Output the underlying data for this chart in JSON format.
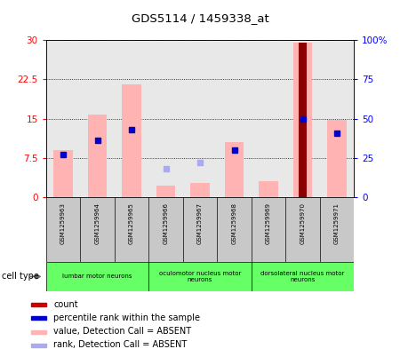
{
  "title": "GDS5114 / 1459338_at",
  "samples": [
    "GSM1259963",
    "GSM1259964",
    "GSM1259965",
    "GSM1259966",
    "GSM1259967",
    "GSM1259968",
    "GSM1259969",
    "GSM1259970",
    "GSM1259971"
  ],
  "value_absent": [
    9.0,
    15.8,
    21.5,
    2.2,
    2.8,
    10.5,
    3.0,
    29.5,
    14.8
  ],
  "rank_absent_idx": [
    3,
    4
  ],
  "rank_absent_vals": [
    18.0,
    22.0
  ],
  "rank_present_blue_idx": [
    0,
    1,
    2,
    5,
    7,
    8
  ],
  "rank_present_blue_vals": [
    27.0,
    36.0,
    43.0,
    30.0,
    50.0,
    41.0
  ],
  "count_red_idx": 7,
  "count_red_val": 29.5,
  "cell_groups": [
    {
      "label": "lumbar motor neurons",
      "start": 0,
      "end": 2
    },
    {
      "label": "oculomotor nucleus motor\nneurons",
      "start": 3,
      "end": 5
    },
    {
      "label": "dorsolateral nucleus motor\nneurons",
      "start": 6,
      "end": 8
    }
  ],
  "ylim_left": [
    0,
    30
  ],
  "ylim_right": [
    0,
    100
  ],
  "yticks_left": [
    0,
    7.5,
    15,
    22.5,
    30
  ],
  "yticks_right": [
    0,
    25,
    50,
    75,
    100
  ],
  "ytick_labels_left": [
    "0",
    "7.5",
    "15",
    "22.5",
    "30"
  ],
  "ytick_labels_right": [
    "0",
    "25",
    "50",
    "75",
    "100%"
  ],
  "bar_color_absent": "#ffb3b3",
  "bar_color_count": "#8b0000",
  "dot_color_rank_absent": "#aaaaee",
  "dot_color_rank_present": "#0000cc",
  "bg_color": "#ffffff",
  "plot_bg": "#e8e8e8",
  "grid_color": "#000000",
  "sample_box_color": "#c8c8c8",
  "cell_group_color": "#66ff66",
  "legend_items": [
    {
      "color": "#cc0000",
      "label": "count"
    },
    {
      "color": "#0000cc",
      "label": "percentile rank within the sample"
    },
    {
      "color": "#ffb3b3",
      "label": "value, Detection Call = ABSENT"
    },
    {
      "color": "#aaaaee",
      "label": "rank, Detection Call = ABSENT"
    }
  ]
}
